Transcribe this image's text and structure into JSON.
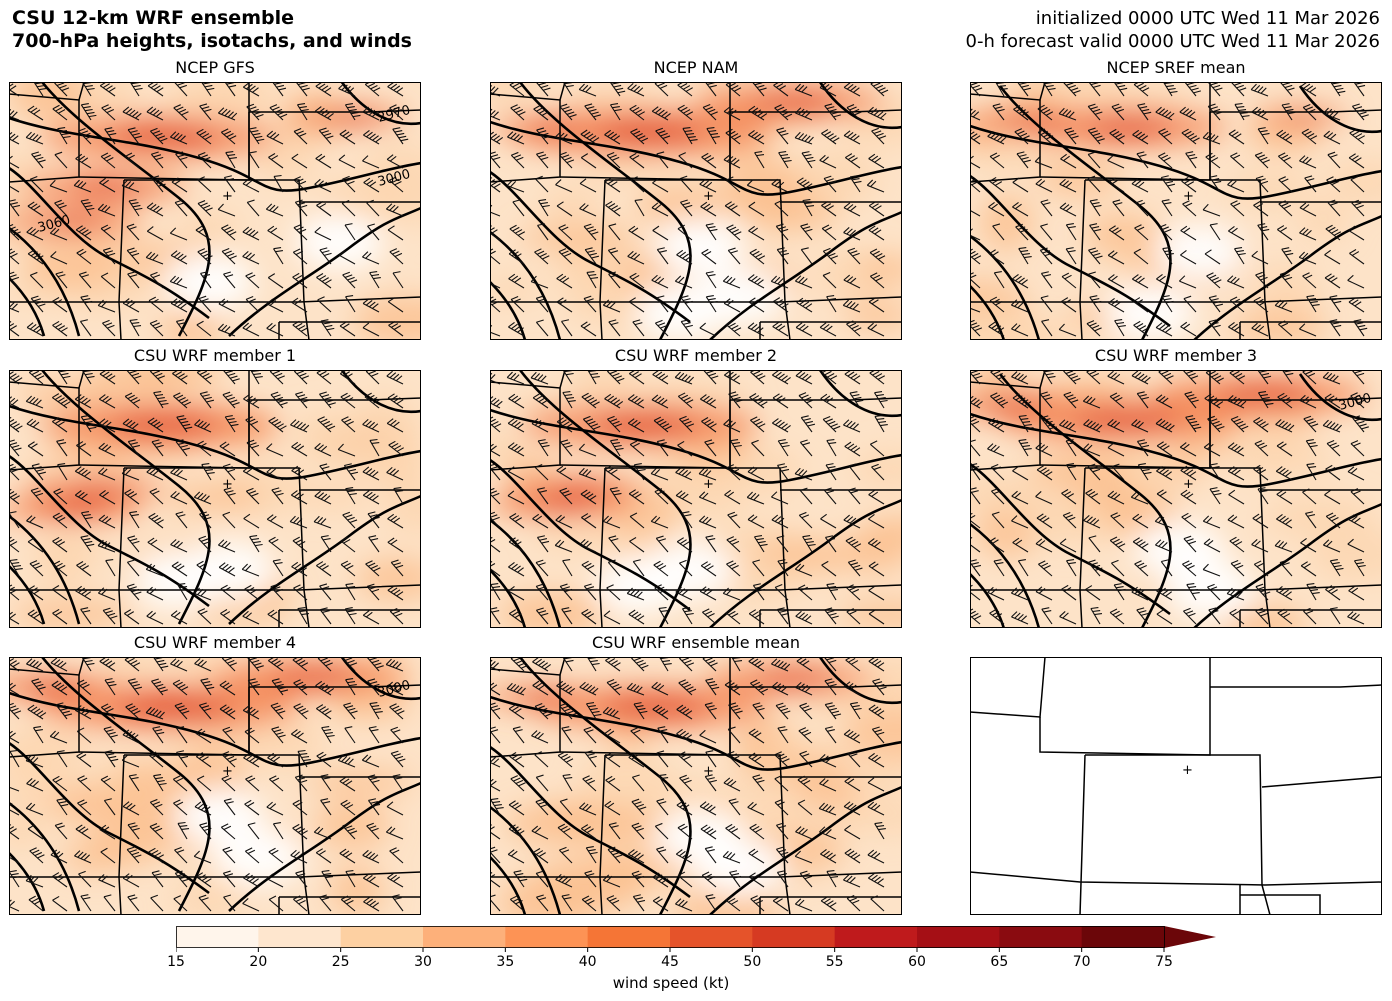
{
  "header": {
    "title_line1": "CSU 12-km WRF ensemble",
    "title_line2": "700-hPa heights, isotachs, and winds",
    "init_line": "initialized 0000 UTC Wed 11 Mar 2026",
    "valid_line": "0-h forecast valid 0000 UTC Wed 11 Mar 2026"
  },
  "panels": [
    {
      "id": "gfs",
      "title": "NCEP GFS",
      "contour_labels": [
        "2970",
        "3000",
        "3060"
      ],
      "jet": [
        [
          150,
          55,
          1.0
        ],
        [
          95,
          105,
          0.7
        ],
        [
          60,
          140,
          0.6
        ],
        [
          340,
          35,
          0.5
        ]
      ],
      "calm": [
        [
          200,
          200
        ],
        [
          330,
          160
        ]
      ]
    },
    {
      "id": "nam",
      "title": "NCEP NAM",
      "contour_labels": [],
      "jet": [
        [
          150,
          50,
          1.1
        ],
        [
          300,
          20,
          0.8
        ],
        [
          60,
          45,
          0.5
        ]
      ],
      "calm": [
        [
          210,
          165
        ],
        [
          250,
          215
        ],
        [
          190,
          230
        ]
      ]
    },
    {
      "id": "sref",
      "title": "NCEP SREF mean",
      "contour_labels": [],
      "jet": [
        [
          150,
          45,
          0.9
        ],
        [
          60,
          40,
          0.6
        ],
        [
          330,
          35,
          0.4
        ]
      ],
      "calm": [
        [
          230,
          170
        ],
        [
          180,
          230
        ]
      ]
    },
    {
      "id": "m1",
      "title": "CSU WRF member 1",
      "contour_labels": [],
      "jet": [
        [
          150,
          55,
          1.0
        ],
        [
          85,
          120,
          0.6
        ],
        [
          60,
          140,
          0.6
        ]
      ],
      "calm": [
        [
          220,
          200
        ],
        [
          170,
          210
        ]
      ]
    },
    {
      "id": "m2",
      "title": "CSU WRF member 2",
      "contour_labels": [],
      "jet": [
        [
          150,
          55,
          1.0
        ],
        [
          85,
          120,
          0.6
        ],
        [
          70,
          135,
          0.6
        ]
      ],
      "calm": [
        [
          200,
          200
        ],
        [
          150,
          215
        ]
      ]
    },
    {
      "id": "m3",
      "title": "CSU WRF member 3",
      "contour_labels": [
        "3000"
      ],
      "jet": [
        [
          150,
          50,
          1.0
        ],
        [
          290,
          25,
          0.9
        ],
        [
          40,
          35,
          0.6
        ]
      ],
      "calm": [
        [
          210,
          180
        ],
        [
          240,
          220
        ]
      ]
    },
    {
      "id": "m4",
      "title": "CSU WRF member 4",
      "contour_labels": [
        "3000"
      ],
      "jet": [
        [
          160,
          50,
          1.1
        ],
        [
          300,
          20,
          0.8
        ],
        [
          40,
          30,
          0.6
        ]
      ],
      "calm": [
        [
          210,
          160
        ],
        [
          250,
          200
        ]
      ]
    },
    {
      "id": "mean",
      "title": "CSU WRF ensemble mean",
      "contour_labels": [],
      "jet": [
        [
          160,
          50,
          1.0
        ],
        [
          300,
          22,
          0.7
        ],
        [
          50,
          40,
          0.5
        ]
      ],
      "calm": [
        [
          210,
          180
        ],
        [
          250,
          210
        ]
      ]
    },
    {
      "id": "blank",
      "title": "",
      "contour_labels": [],
      "jet": [],
      "calm": []
    }
  ],
  "colorbar": {
    "label": "wind speed (kt)",
    "ticks": [
      "15",
      "20",
      "25",
      "30",
      "35",
      "40",
      "45",
      "50",
      "55",
      "60",
      "65",
      "70",
      "75"
    ],
    "colors": [
      "#fff5eb",
      "#fee6ce",
      "#fdd0a2",
      "#fdb07a",
      "#fd9355",
      "#f57536",
      "#e5532a",
      "#d63a22",
      "#bf1a1c",
      "#a50f15",
      "#8a0b10",
      "#6b0609"
    ]
  }
}
